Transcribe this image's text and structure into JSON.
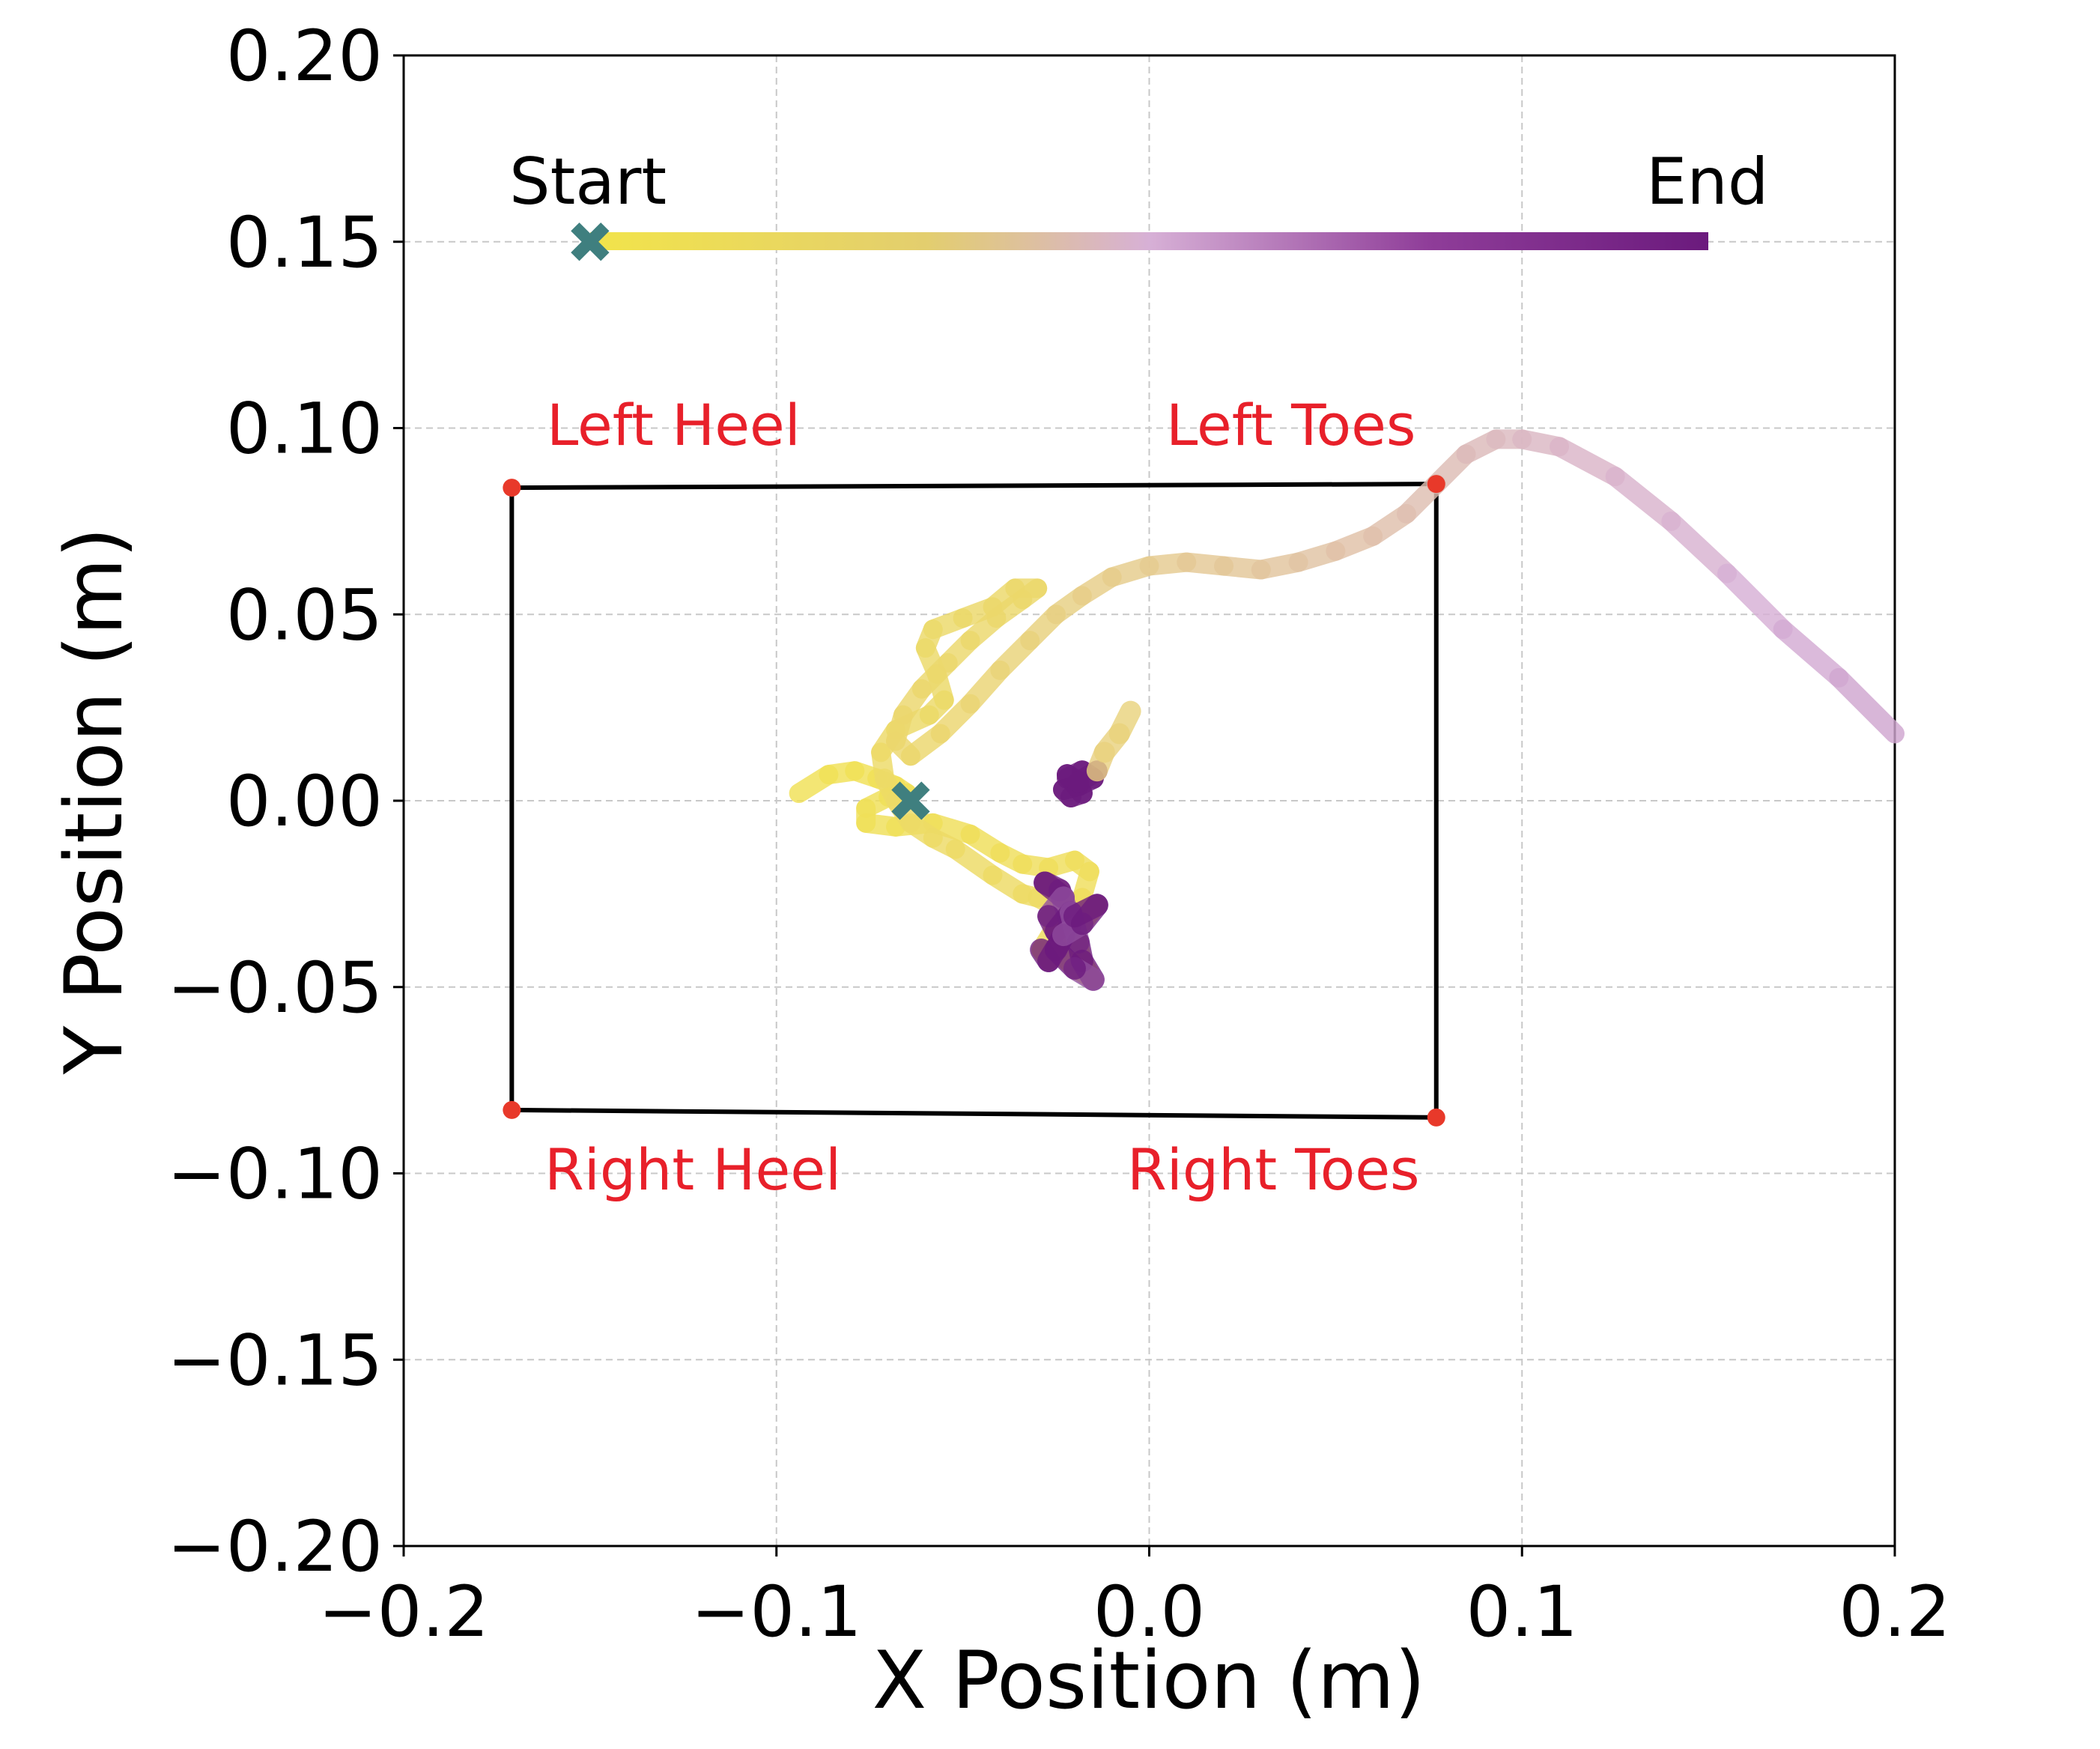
{
  "chart_data": {
    "type": "line",
    "xlabel": "X Position (m)",
    "ylabel": "Y Position (m)",
    "xlim": [
      -0.2,
      0.2
    ],
    "ylim": [
      -0.2,
      0.2
    ],
    "x_ticks": [
      "−0.2",
      "−0.1",
      "0.0",
      "0.1",
      "0.2"
    ],
    "x_tick_values": [
      -0.2,
      -0.1,
      0.0,
      0.1,
      0.2
    ],
    "y_ticks": [
      "0.20",
      "0.15",
      "0.10",
      "0.05",
      "0.00",
      "−0.05",
      "−0.10",
      "−0.15",
      "−0.20"
    ],
    "y_tick_values": [
      0.2,
      0.15,
      0.1,
      0.05,
      0.0,
      -0.05,
      -0.1,
      -0.15,
      -0.2
    ],
    "grid": true,
    "colors": {
      "start": "#f2e44a",
      "middle": "#d7b0d6",
      "end": "#6b1a7d",
      "marker": "#3f7f7f",
      "corners": "#e8392a",
      "corner_labels": "#e8202a",
      "polygon": "#000000"
    },
    "colorbar_legend": {
      "start_label": "Start",
      "end_label": "End",
      "y": 0.15,
      "x_start": -0.15,
      "x_end": 0.15
    },
    "support_polygon": {
      "corners": [
        {
          "name": "Left Heel",
          "x": -0.171,
          "y": 0.084
        },
        {
          "name": "Left Toes",
          "x": 0.077,
          "y": 0.085
        },
        {
          "name": "Right Toes",
          "x": 0.077,
          "y": -0.085
        },
        {
          "name": "Right Heel",
          "x": -0.171,
          "y": -0.083
        }
      ],
      "labels": {
        "left_heel": "Left Heel",
        "left_toes": "Left Toes",
        "right_heel": "Right Heel",
        "right_toes": "Right Toes"
      }
    },
    "start_marker": {
      "x": -0.064,
      "y": 0.0
    },
    "trajectory": [
      [
        -0.094,
        0.002
      ],
      [
        -0.086,
        0.007
      ],
      [
        -0.079,
        0.008
      ],
      [
        -0.073,
        0.006
      ],
      [
        -0.068,
        0.004
      ],
      [
        -0.065,
        0.002
      ],
      [
        -0.07,
        0.001
      ],
      [
        -0.076,
        -0.002
      ],
      [
        -0.076,
        -0.006
      ],
      [
        -0.068,
        -0.007
      ],
      [
        -0.058,
        -0.006
      ],
      [
        -0.048,
        -0.009
      ],
      [
        -0.04,
        -0.014
      ],
      [
        -0.034,
        -0.017
      ],
      [
        -0.027,
        -0.018
      ],
      [
        -0.02,
        -0.016
      ],
      [
        -0.016,
        -0.019
      ],
      [
        -0.018,
        -0.026
      ],
      [
        -0.024,
        -0.032
      ],
      [
        -0.029,
        -0.04
      ],
      [
        -0.027,
        -0.043
      ],
      [
        -0.021,
        -0.033
      ],
      [
        -0.024,
        -0.024
      ],
      [
        -0.028,
        -0.022
      ],
      [
        -0.023,
        -0.026
      ],
      [
        -0.027,
        -0.031
      ],
      [
        -0.025,
        -0.035
      ],
      [
        -0.021,
        -0.03
      ],
      [
        -0.019,
        -0.038
      ],
      [
        -0.018,
        -0.043
      ],
      [
        -0.015,
        -0.048
      ],
      [
        -0.02,
        -0.045
      ],
      [
        -0.025,
        -0.04
      ],
      [
        -0.023,
        -0.036
      ],
      [
        -0.018,
        -0.033
      ],
      [
        -0.014,
        -0.028
      ],
      [
        -0.02,
        -0.031
      ],
      [
        -0.024,
        -0.029
      ],
      [
        -0.03,
        -0.026
      ],
      [
        -0.034,
        -0.025
      ],
      [
        -0.042,
        -0.02
      ],
      [
        -0.052,
        -0.013
      ],
      [
        -0.058,
        -0.01
      ],
      [
        -0.064,
        -0.006
      ],
      [
        -0.068,
        0.0
      ],
      [
        -0.071,
        0.006
      ],
      [
        -0.072,
        0.013
      ],
      [
        -0.068,
        0.019
      ],
      [
        -0.059,
        0.023
      ],
      [
        -0.055,
        0.027
      ],
      [
        -0.057,
        0.034
      ],
      [
        -0.06,
        0.041
      ],
      [
        -0.058,
        0.046
      ],
      [
        -0.05,
        0.049
      ],
      [
        -0.042,
        0.052
      ],
      [
        -0.036,
        0.057
      ],
      [
        -0.03,
        0.057
      ],
      [
        -0.034,
        0.054
      ],
      [
        -0.041,
        0.049
      ],
      [
        -0.048,
        0.043
      ],
      [
        -0.054,
        0.037
      ],
      [
        -0.061,
        0.03
      ],
      [
        -0.066,
        0.023
      ],
      [
        -0.068,
        0.016
      ],
      [
        -0.064,
        0.012
      ],
      [
        -0.056,
        0.018
      ],
      [
        -0.048,
        0.026
      ],
      [
        -0.04,
        0.035
      ],
      [
        -0.032,
        0.043
      ],
      [
        -0.025,
        0.05
      ],
      [
        -0.018,
        0.055
      ],
      [
        -0.01,
        0.06
      ],
      [
        0.0,
        0.063
      ],
      [
        0.01,
        0.064
      ],
      [
        0.02,
        0.063
      ],
      [
        0.03,
        0.062
      ],
      [
        0.04,
        0.064
      ],
      [
        0.05,
        0.067
      ],
      [
        0.06,
        0.071
      ],
      [
        0.069,
        0.077
      ],
      [
        0.077,
        0.085
      ],
      [
        0.085,
        0.093
      ],
      [
        0.093,
        0.097
      ],
      [
        0.1,
        0.097
      ],
      [
        0.11,
        0.095
      ],
      [
        0.125,
        0.087
      ],
      [
        0.14,
        0.075
      ],
      [
        0.155,
        0.061
      ],
      [
        0.17,
        0.046
      ],
      [
        0.185,
        0.033
      ],
      [
        0.2,
        0.018
      ]
    ],
    "trajectory_tail_cluster": [
      [
        -0.022,
        0.006
      ],
      [
        -0.018,
        0.008
      ],
      [
        -0.015,
        0.006
      ],
      [
        -0.019,
        0.004
      ],
      [
        -0.023,
        0.003
      ],
      [
        -0.021,
        0.001
      ],
      [
        -0.018,
        0.002
      ],
      [
        -0.022,
        0.007
      ],
      [
        -0.019,
        0.005
      ],
      [
        -0.014,
        0.008
      ],
      [
        -0.012,
        0.013
      ],
      [
        -0.008,
        0.018
      ],
      [
        -0.005,
        0.024
      ]
    ]
  }
}
